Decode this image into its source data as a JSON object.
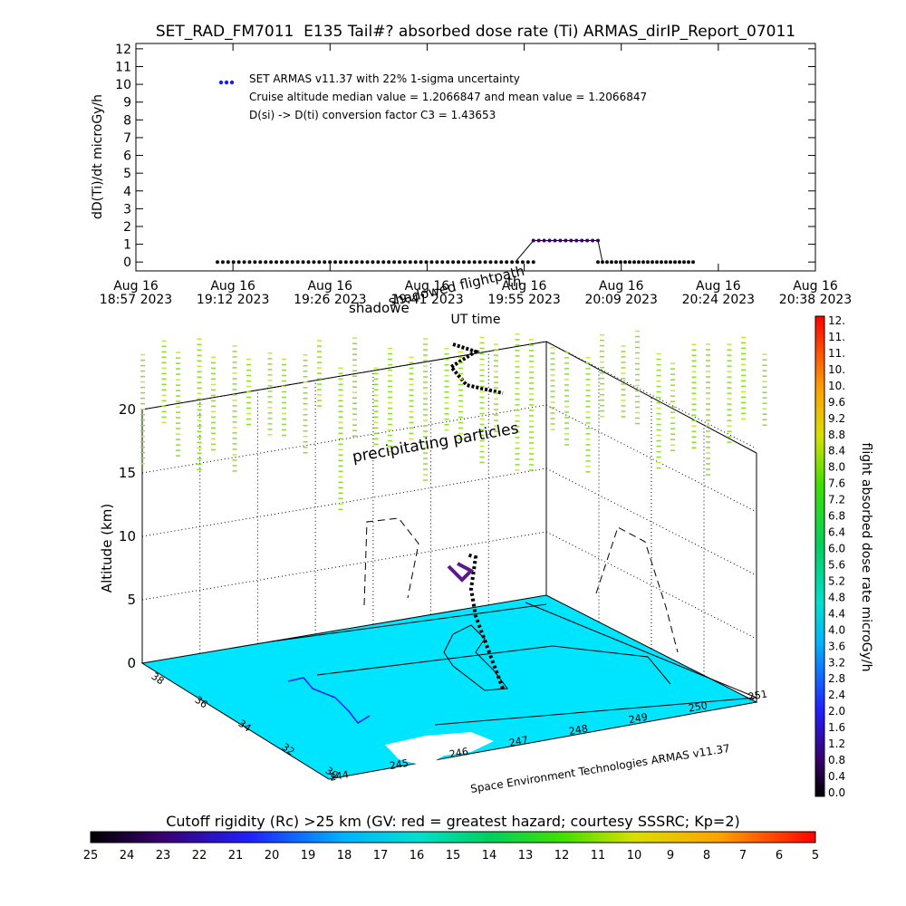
{
  "chart_data": [
    {
      "type": "scatter",
      "title": "SET_RAD_FM7011  E135 Tail#? absorbed dose rate (Ti) ARMAS_dirIP_Report_07011",
      "ylabel": "dD(Ti)/dt microGy/h",
      "xlabel": "UT time",
      "ylim": [
        0,
        12
      ],
      "yticks": [
        "0",
        "1",
        "2",
        "3",
        "4",
        "5",
        "6",
        "7",
        "8",
        "9",
        "10",
        "11",
        "12"
      ],
      "xticks": [
        {
          "top": "Aug 16",
          "bottom": "18:57 2023"
        },
        {
          "top": "Aug 16",
          "bottom": "19:12 2023"
        },
        {
          "top": "Aug 16",
          "bottom": "19:26 2023"
        },
        {
          "top": "Aug 16",
          "bottom": "19:41 2023"
        },
        {
          "top": "Aug 16",
          "bottom": "19:55 2023"
        },
        {
          "top": "Aug 16",
          "bottom": "20:09 2023"
        },
        {
          "top": "Aug 16",
          "bottom": "20:24 2023"
        },
        {
          "top": "Aug 16",
          "bottom": "20:38 2023"
        }
      ],
      "legend": {
        "marker_label": "SET ARMAS v11.37 with 22% 1-sigma uncertainty",
        "line2": "Cruise altitude median value = 1.2066847 and mean value = 1.2066847",
        "line3": "D(si) -> D(ti) conversion factor C3 = 1.43653",
        "marker_color": "#1a1aff"
      },
      "series_low": {
        "value": 0.0,
        "x_start": 0.12,
        "x_end": 0.585,
        "count": 60
      },
      "series_high": {
        "value": 1.2066847,
        "x_start": 0.585,
        "x_end": 0.68,
        "count": 13
      },
      "series_low2": {
        "value": 0.0,
        "x_start": 0.68,
        "x_end": 0.82,
        "count": 22
      },
      "overlay_labels": {
        "a": "shadowed flightpath",
        "b": "shadowe",
        "c": "th"
      }
    },
    {
      "type": "scatter3d",
      "zlabel": "Altitude (km)",
      "zticks": [
        "0",
        "5",
        "10",
        "15",
        "20"
      ],
      "lat_ticks": [
        "38",
        "36",
        "34",
        "32",
        "30"
      ],
      "lon_ticks": [
        "244",
        "245",
        "246",
        "247",
        "248",
        "249",
        "250",
        "251"
      ],
      "annotation": "precipitating particles",
      "credit": "Space Environment Technologies ARMAS v11.37",
      "map_color": "#00e5ff",
      "particle_color": "#a8e63a",
      "colorbar": {
        "label": "flight absorbed dose rate microGy/h",
        "ticks": [
          "0.0",
          "0.4",
          "0.8",
          "1.2",
          "1.6",
          "2.0",
          "2.4",
          "2.8",
          "3.2",
          "3.6",
          "4.0",
          "4.4",
          "4.8",
          "5.2",
          "5.6",
          "6.0",
          "6.4",
          "6.8",
          "7.2",
          "7.6",
          "8.0",
          "8.4",
          "8.8",
          "9.2",
          "9.6",
          "10.",
          "10.",
          "11.",
          "11.",
          "12."
        ]
      }
    },
    {
      "type": "colorbar",
      "title": "Cutoff rigidity (Rc) >25 km (GV: red = greatest hazard; courtesy SSSRC; Kp=2)",
      "ticks": [
        "25",
        "24",
        "23",
        "22",
        "21",
        "20",
        "19",
        "18",
        "17",
        "16",
        "15",
        "14",
        "13",
        "12",
        "11",
        "10",
        "9",
        "8",
        "7",
        "6",
        "5"
      ]
    }
  ]
}
